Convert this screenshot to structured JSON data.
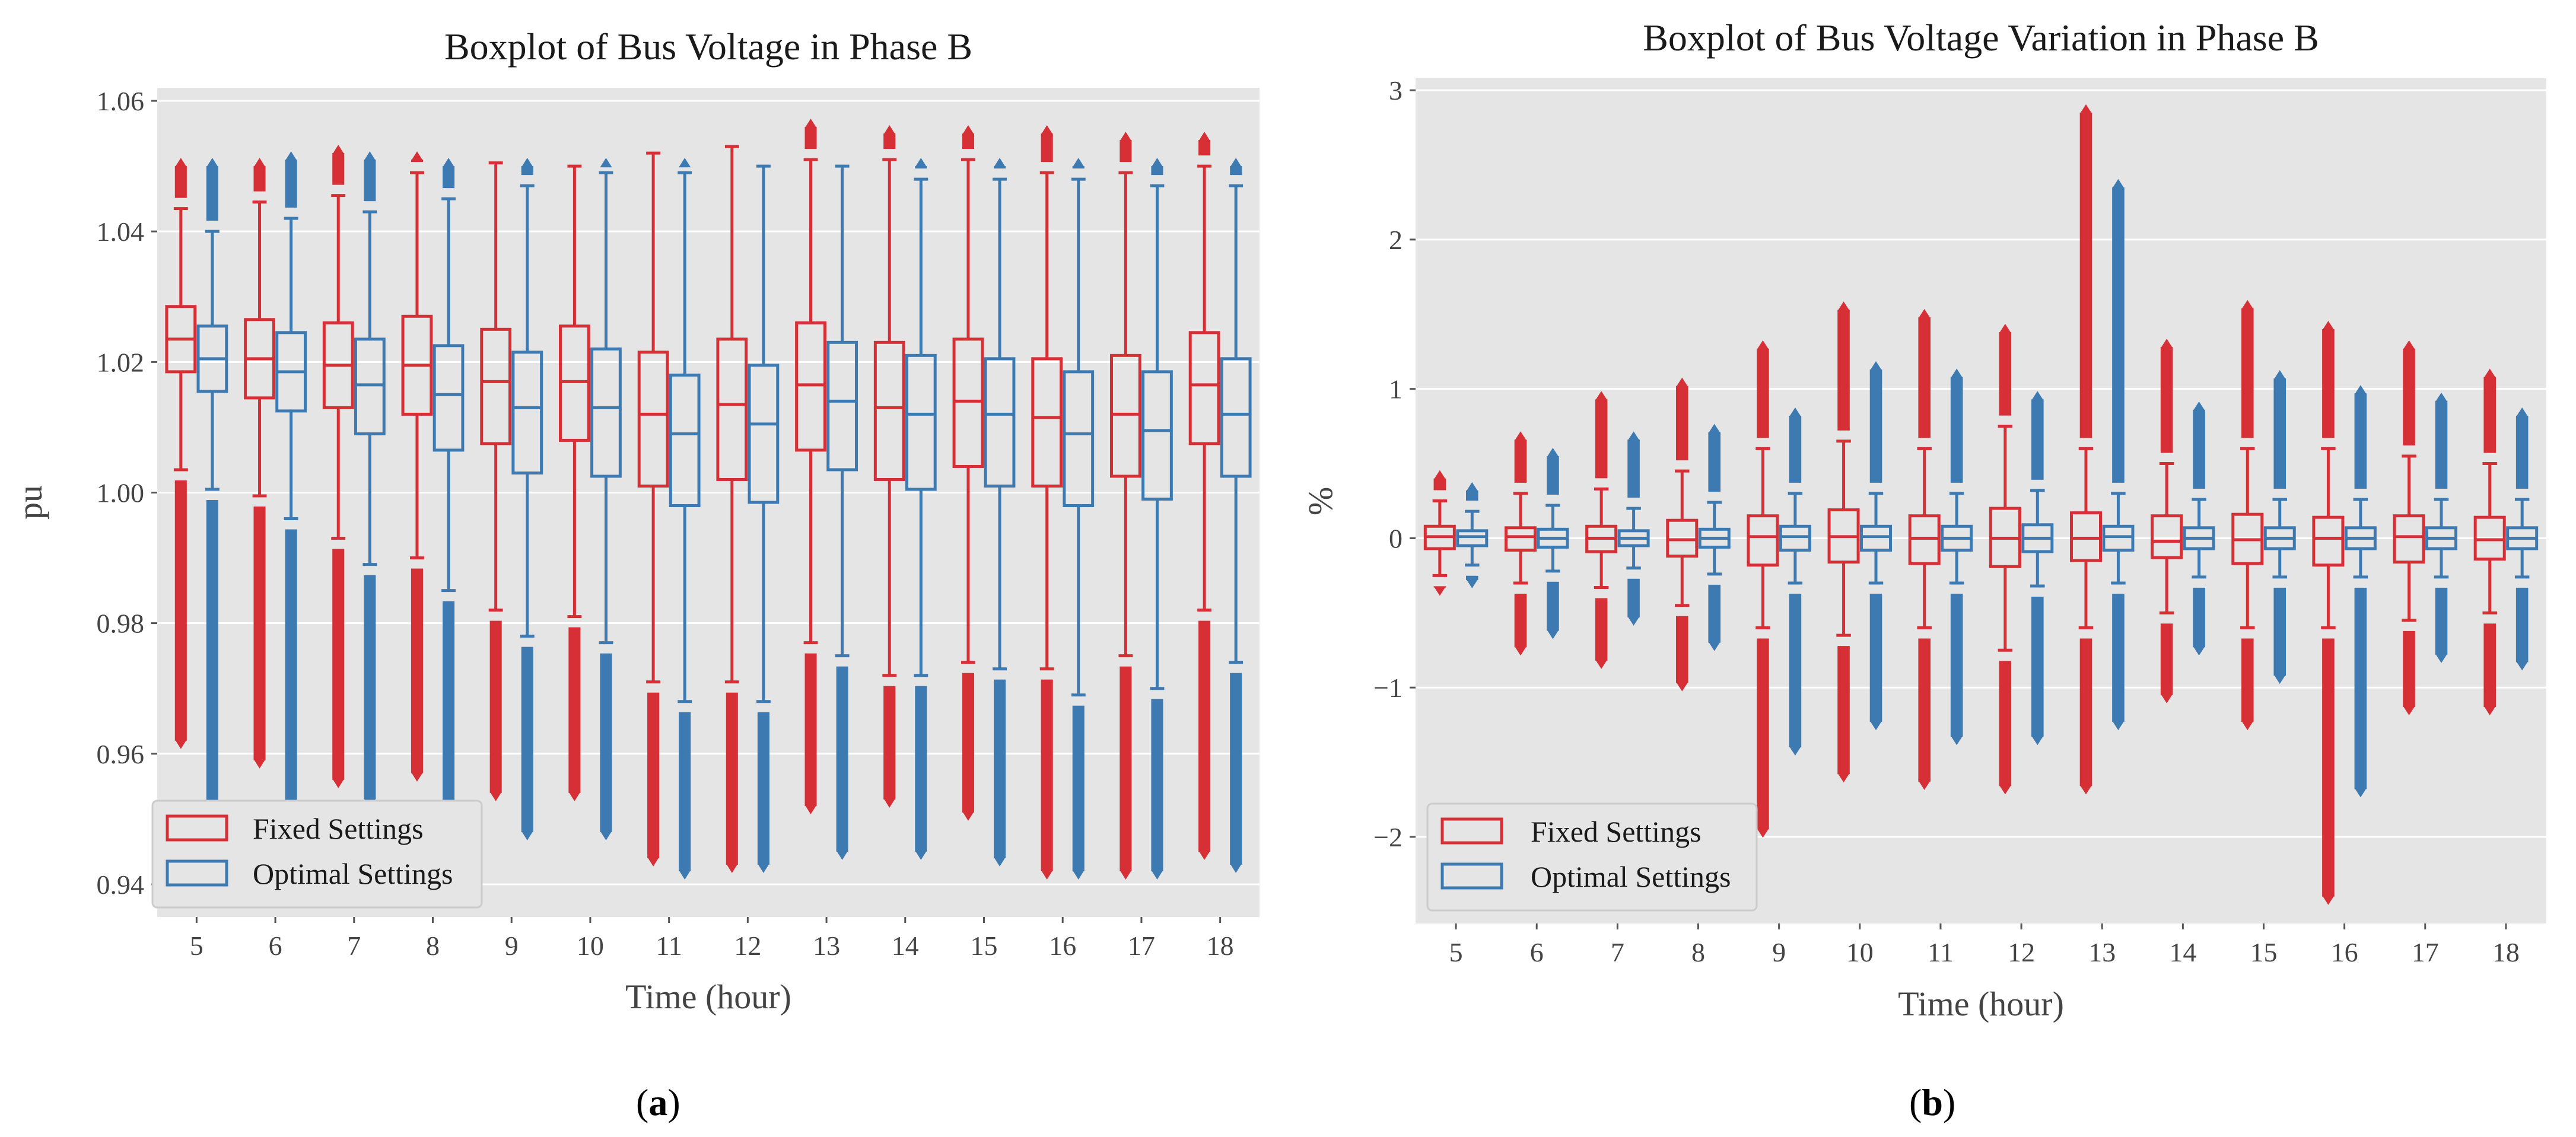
{
  "colors": {
    "fixed": "#d62f35",
    "optimal": "#3d7ab2",
    "panel_bg": "#e5e5e5",
    "grid": "#ffffff"
  },
  "chart_data": [
    {
      "id": "a",
      "type": "boxplot",
      "caption_letter": "a",
      "title": "Boxplot of Bus Voltage in Phase B",
      "xlabel": "Time (hour)",
      "ylabel": "pu",
      "ylim": [
        0.935,
        1.062
      ],
      "yticks": [
        "0.94",
        "0.96",
        "0.98",
        "1.00",
        "1.02",
        "1.04",
        "1.06"
      ],
      "categories": [
        "5",
        "6",
        "7",
        "8",
        "9",
        "10",
        "11",
        "12",
        "13",
        "14",
        "15",
        "16",
        "17",
        "18"
      ],
      "legend": {
        "position": "lower-left",
        "entries": [
          "Fixed Settings",
          "Optimal Settings"
        ]
      },
      "series": [
        {
          "name": "Fixed Settings",
          "boxes": [
            {
              "q1": 1.0185,
              "med": 1.0235,
              "q3": 1.0285,
              "wlo": 1.0035,
              "whi": 1.0435,
              "flo": 0.962,
              "fhi": 1.05
            },
            {
              "q1": 1.0145,
              "med": 1.0205,
              "q3": 1.0265,
              "wlo": 0.9995,
              "whi": 1.0445,
              "flo": 0.959,
              "fhi": 1.05
            },
            {
              "q1": 1.013,
              "med": 1.0195,
              "q3": 1.026,
              "wlo": 0.993,
              "whi": 1.0455,
              "flo": 0.956,
              "fhi": 1.052
            },
            {
              "q1": 1.012,
              "med": 1.0195,
              "q3": 1.027,
              "wlo": 0.99,
              "whi": 1.049,
              "flo": 0.957,
              "fhi": 1.051
            },
            {
              "q1": 1.0075,
              "med": 1.017,
              "q3": 1.025,
              "wlo": 0.982,
              "whi": 1.0505,
              "flo": 0.954,
              "fhi": 1.0505
            },
            {
              "q1": 1.008,
              "med": 1.017,
              "q3": 1.0255,
              "wlo": 0.981,
              "whi": 1.05,
              "flo": 0.954,
              "fhi": 1.05
            },
            {
              "q1": 1.001,
              "med": 1.012,
              "q3": 1.0215,
              "wlo": 0.971,
              "whi": 1.052,
              "flo": 0.944,
              "fhi": 1.052
            },
            {
              "q1": 1.002,
              "med": 1.0135,
              "q3": 1.0235,
              "wlo": 0.971,
              "whi": 1.053,
              "flo": 0.943,
              "fhi": 1.053
            },
            {
              "q1": 1.0065,
              "med": 1.0165,
              "q3": 1.026,
              "wlo": 0.977,
              "whi": 1.051,
              "flo": 0.952,
              "fhi": 1.056
            },
            {
              "q1": 1.002,
              "med": 1.013,
              "q3": 1.023,
              "wlo": 0.972,
              "whi": 1.051,
              "flo": 0.953,
              "fhi": 1.055
            },
            {
              "q1": 1.004,
              "med": 1.014,
              "q3": 1.0235,
              "wlo": 0.974,
              "whi": 1.051,
              "flo": 0.951,
              "fhi": 1.055
            },
            {
              "q1": 1.001,
              "med": 1.0115,
              "q3": 1.0205,
              "wlo": 0.973,
              "whi": 1.049,
              "flo": 0.942,
              "fhi": 1.055
            },
            {
              "q1": 1.0025,
              "med": 1.012,
              "q3": 1.021,
              "wlo": 0.975,
              "whi": 1.049,
              "flo": 0.942,
              "fhi": 1.054
            },
            {
              "q1": 1.0075,
              "med": 1.0165,
              "q3": 1.0245,
              "wlo": 0.982,
              "whi": 1.05,
              "flo": 0.945,
              "fhi": 1.054
            }
          ]
        },
        {
          "name": "Optimal Settings",
          "boxes": [
            {
              "q1": 1.0155,
              "med": 1.0205,
              "q3": 1.0255,
              "wlo": 1.0005,
              "whi": 1.04,
              "flo": 0.952,
              "fhi": 1.05
            },
            {
              "q1": 1.0125,
              "med": 1.0185,
              "q3": 1.0245,
              "wlo": 0.996,
              "whi": 1.042,
              "flo": 0.951,
              "fhi": 1.051
            },
            {
              "q1": 1.009,
              "med": 1.0165,
              "q3": 1.0235,
              "wlo": 0.989,
              "whi": 1.043,
              "flo": 0.953,
              "fhi": 1.051
            },
            {
              "q1": 1.0065,
              "med": 1.015,
              "q3": 1.0225,
              "wlo": 0.985,
              "whi": 1.045,
              "flo": 0.952,
              "fhi": 1.05
            },
            {
              "q1": 1.003,
              "med": 1.013,
              "q3": 1.0215,
              "wlo": 0.978,
              "whi": 1.047,
              "flo": 0.948,
              "fhi": 1.05
            },
            {
              "q1": 1.0025,
              "med": 1.013,
              "q3": 1.022,
              "wlo": 0.977,
              "whi": 1.049,
              "flo": 0.948,
              "fhi": 1.05
            },
            {
              "q1": 0.998,
              "med": 1.009,
              "q3": 1.018,
              "wlo": 0.968,
              "whi": 1.049,
              "flo": 0.942,
              "fhi": 1.05
            },
            {
              "q1": 0.9985,
              "med": 1.0105,
              "q3": 1.0195,
              "wlo": 0.968,
              "whi": 1.05,
              "flo": 0.943,
              "fhi": 1.05
            },
            {
              "q1": 1.0035,
              "med": 1.014,
              "q3": 1.023,
              "wlo": 0.975,
              "whi": 1.05,
              "flo": 0.945,
              "fhi": 1.05
            },
            {
              "q1": 1.0005,
              "med": 1.012,
              "q3": 1.021,
              "wlo": 0.972,
              "whi": 1.048,
              "flo": 0.945,
              "fhi": 1.05
            },
            {
              "q1": 1.001,
              "med": 1.012,
              "q3": 1.0205,
              "wlo": 0.973,
              "whi": 1.048,
              "flo": 0.944,
              "fhi": 1.05
            },
            {
              "q1": 0.998,
              "med": 1.009,
              "q3": 1.0185,
              "wlo": 0.969,
              "whi": 1.048,
              "flo": 0.942,
              "fhi": 1.05
            },
            {
              "q1": 0.999,
              "med": 1.0095,
              "q3": 1.0185,
              "wlo": 0.97,
              "whi": 1.047,
              "flo": 0.942,
              "fhi": 1.05
            },
            {
              "q1": 1.0025,
              "med": 1.012,
              "q3": 1.0205,
              "wlo": 0.974,
              "whi": 1.047,
              "flo": 0.943,
              "fhi": 1.05
            }
          ]
        }
      ]
    },
    {
      "id": "b",
      "type": "boxplot",
      "caption_letter": "b",
      "title": "Boxplot of Bus Voltage Variation in Phase B",
      "xlabel": "Time (hour)",
      "ylabel": "%",
      "ylim": [
        -2.58,
        3.08
      ],
      "yticks": [
        "−2",
        "−1",
        "0",
        "1",
        "2",
        "3"
      ],
      "categories": [
        "5",
        "6",
        "7",
        "8",
        "9",
        "10",
        "11",
        "12",
        "13",
        "14",
        "15",
        "16",
        "17",
        "18"
      ],
      "legend": {
        "position": "lower-left",
        "entries": [
          "Fixed Settings",
          "Optimal Settings"
        ]
      },
      "series": [
        {
          "name": "Fixed Settings",
          "boxes": [
            {
              "q1": -0.07,
              "med": 0.01,
              "q3": 0.08,
              "wlo": -0.25,
              "whi": 0.25,
              "flo": -0.33,
              "fhi": 0.4
            },
            {
              "q1": -0.08,
              "med": 0.01,
              "q3": 0.07,
              "wlo": -0.3,
              "whi": 0.3,
              "flo": -0.73,
              "fhi": 0.66
            },
            {
              "q1": -0.09,
              "med": 0.0,
              "q3": 0.08,
              "wlo": -0.33,
              "whi": 0.33,
              "flo": -0.82,
              "fhi": 0.93
            },
            {
              "q1": -0.12,
              "med": -0.01,
              "q3": 0.12,
              "wlo": -0.45,
              "whi": 0.45,
              "flo": -0.97,
              "fhi": 1.02
            },
            {
              "q1": -0.18,
              "med": 0.01,
              "q3": 0.15,
              "wlo": -0.6,
              "whi": 0.6,
              "flo": -1.95,
              "fhi": 1.27
            },
            {
              "q1": -0.16,
              "med": 0.01,
              "q3": 0.19,
              "wlo": -0.65,
              "whi": 0.65,
              "flo": -1.58,
              "fhi": 1.53
            },
            {
              "q1": -0.17,
              "med": 0.0,
              "q3": 0.15,
              "wlo": -0.6,
              "whi": 0.6,
              "flo": -1.63,
              "fhi": 1.48
            },
            {
              "q1": -0.19,
              "med": 0.0,
              "q3": 0.2,
              "wlo": -0.75,
              "whi": 0.75,
              "flo": -1.66,
              "fhi": 1.38
            },
            {
              "q1": -0.15,
              "med": 0.0,
              "q3": 0.17,
              "wlo": -0.6,
              "whi": 0.6,
              "flo": -1.66,
              "fhi": 2.85
            },
            {
              "q1": -0.13,
              "med": -0.02,
              "q3": 0.15,
              "wlo": -0.5,
              "whi": 0.5,
              "flo": -1.05,
              "fhi": 1.28
            },
            {
              "q1": -0.17,
              "med": -0.01,
              "q3": 0.16,
              "wlo": -0.6,
              "whi": 0.6,
              "flo": -1.23,
              "fhi": 1.54
            },
            {
              "q1": -0.18,
              "med": 0.0,
              "q3": 0.14,
              "wlo": -0.6,
              "whi": 0.6,
              "flo": -2.4,
              "fhi": 1.4
            },
            {
              "q1": -0.16,
              "med": 0.01,
              "q3": 0.15,
              "wlo": -0.55,
              "whi": 0.55,
              "flo": -1.13,
              "fhi": 1.27
            },
            {
              "q1": -0.14,
              "med": -0.01,
              "q3": 0.14,
              "wlo": -0.5,
              "whi": 0.5,
              "flo": -1.13,
              "fhi": 1.08
            }
          ]
        },
        {
          "name": "Optimal Settings",
          "boxes": [
            {
              "q1": -0.05,
              "med": 0.01,
              "q3": 0.05,
              "wlo": -0.18,
              "whi": 0.18,
              "flo": -0.28,
              "fhi": 0.32
            },
            {
              "q1": -0.06,
              "med": 0.0,
              "q3": 0.06,
              "wlo": -0.22,
              "whi": 0.22,
              "flo": -0.62,
              "fhi": 0.55
            },
            {
              "q1": -0.05,
              "med": 0.0,
              "q3": 0.05,
              "wlo": -0.2,
              "whi": 0.2,
              "flo": -0.53,
              "fhi": 0.66
            },
            {
              "q1": -0.06,
              "med": 0.0,
              "q3": 0.06,
              "wlo": -0.24,
              "whi": 0.24,
              "flo": -0.7,
              "fhi": 0.71
            },
            {
              "q1": -0.08,
              "med": 0.01,
              "q3": 0.08,
              "wlo": -0.3,
              "whi": 0.3,
              "flo": -1.4,
              "fhi": 0.82
            },
            {
              "q1": -0.08,
              "med": 0.01,
              "q3": 0.08,
              "wlo": -0.3,
              "whi": 0.3,
              "flo": -1.23,
              "fhi": 1.13
            },
            {
              "q1": -0.08,
              "med": 0.0,
              "q3": 0.08,
              "wlo": -0.3,
              "whi": 0.3,
              "flo": -1.33,
              "fhi": 1.08
            },
            {
              "q1": -0.09,
              "med": 0.0,
              "q3": 0.09,
              "wlo": -0.32,
              "whi": 0.32,
              "flo": -1.33,
              "fhi": 0.93
            },
            {
              "q1": -0.08,
              "med": 0.01,
              "q3": 0.08,
              "wlo": -0.3,
              "whi": 0.3,
              "flo": -1.23,
              "fhi": 2.35
            },
            {
              "q1": -0.07,
              "med": 0.0,
              "q3": 0.07,
              "wlo": -0.26,
              "whi": 0.26,
              "flo": -0.73,
              "fhi": 0.86
            },
            {
              "q1": -0.07,
              "med": 0.0,
              "q3": 0.07,
              "wlo": -0.26,
              "whi": 0.26,
              "flo": -0.92,
              "fhi": 1.07
            },
            {
              "q1": -0.07,
              "med": 0.0,
              "q3": 0.07,
              "wlo": -0.26,
              "whi": 0.26,
              "flo": -1.68,
              "fhi": 0.97
            },
            {
              "q1": -0.07,
              "med": 0.0,
              "q3": 0.07,
              "wlo": -0.26,
              "whi": 0.26,
              "flo": -0.78,
              "fhi": 0.92
            },
            {
              "q1": -0.07,
              "med": 0.0,
              "q3": 0.07,
              "wlo": -0.26,
              "whi": 0.26,
              "flo": -0.83,
              "fhi": 0.82
            }
          ]
        }
      ]
    }
  ]
}
